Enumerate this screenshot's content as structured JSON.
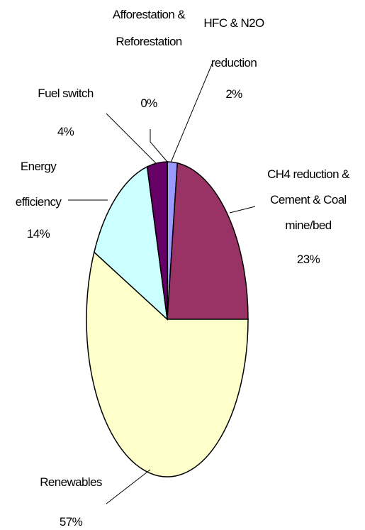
{
  "chart_data": {
    "type": "pie",
    "categories": [
      "HFC & N2O reduction",
      "CH4 reduction & Cement & Coal mine/bed",
      "Renewables",
      "Energy efficiency",
      "Fuel switch",
      "Afforestation & Reforestation"
    ],
    "values": [
      2,
      23,
      57,
      14,
      4,
      0
    ],
    "value_labels": [
      "2%",
      "23%",
      "57%",
      "14%",
      "4%",
      "0%"
    ],
    "colors": [
      "#9999ff",
      "#993366",
      "#ffffcc",
      "#ccffff",
      "#660066",
      "#800080"
    ]
  }
}
